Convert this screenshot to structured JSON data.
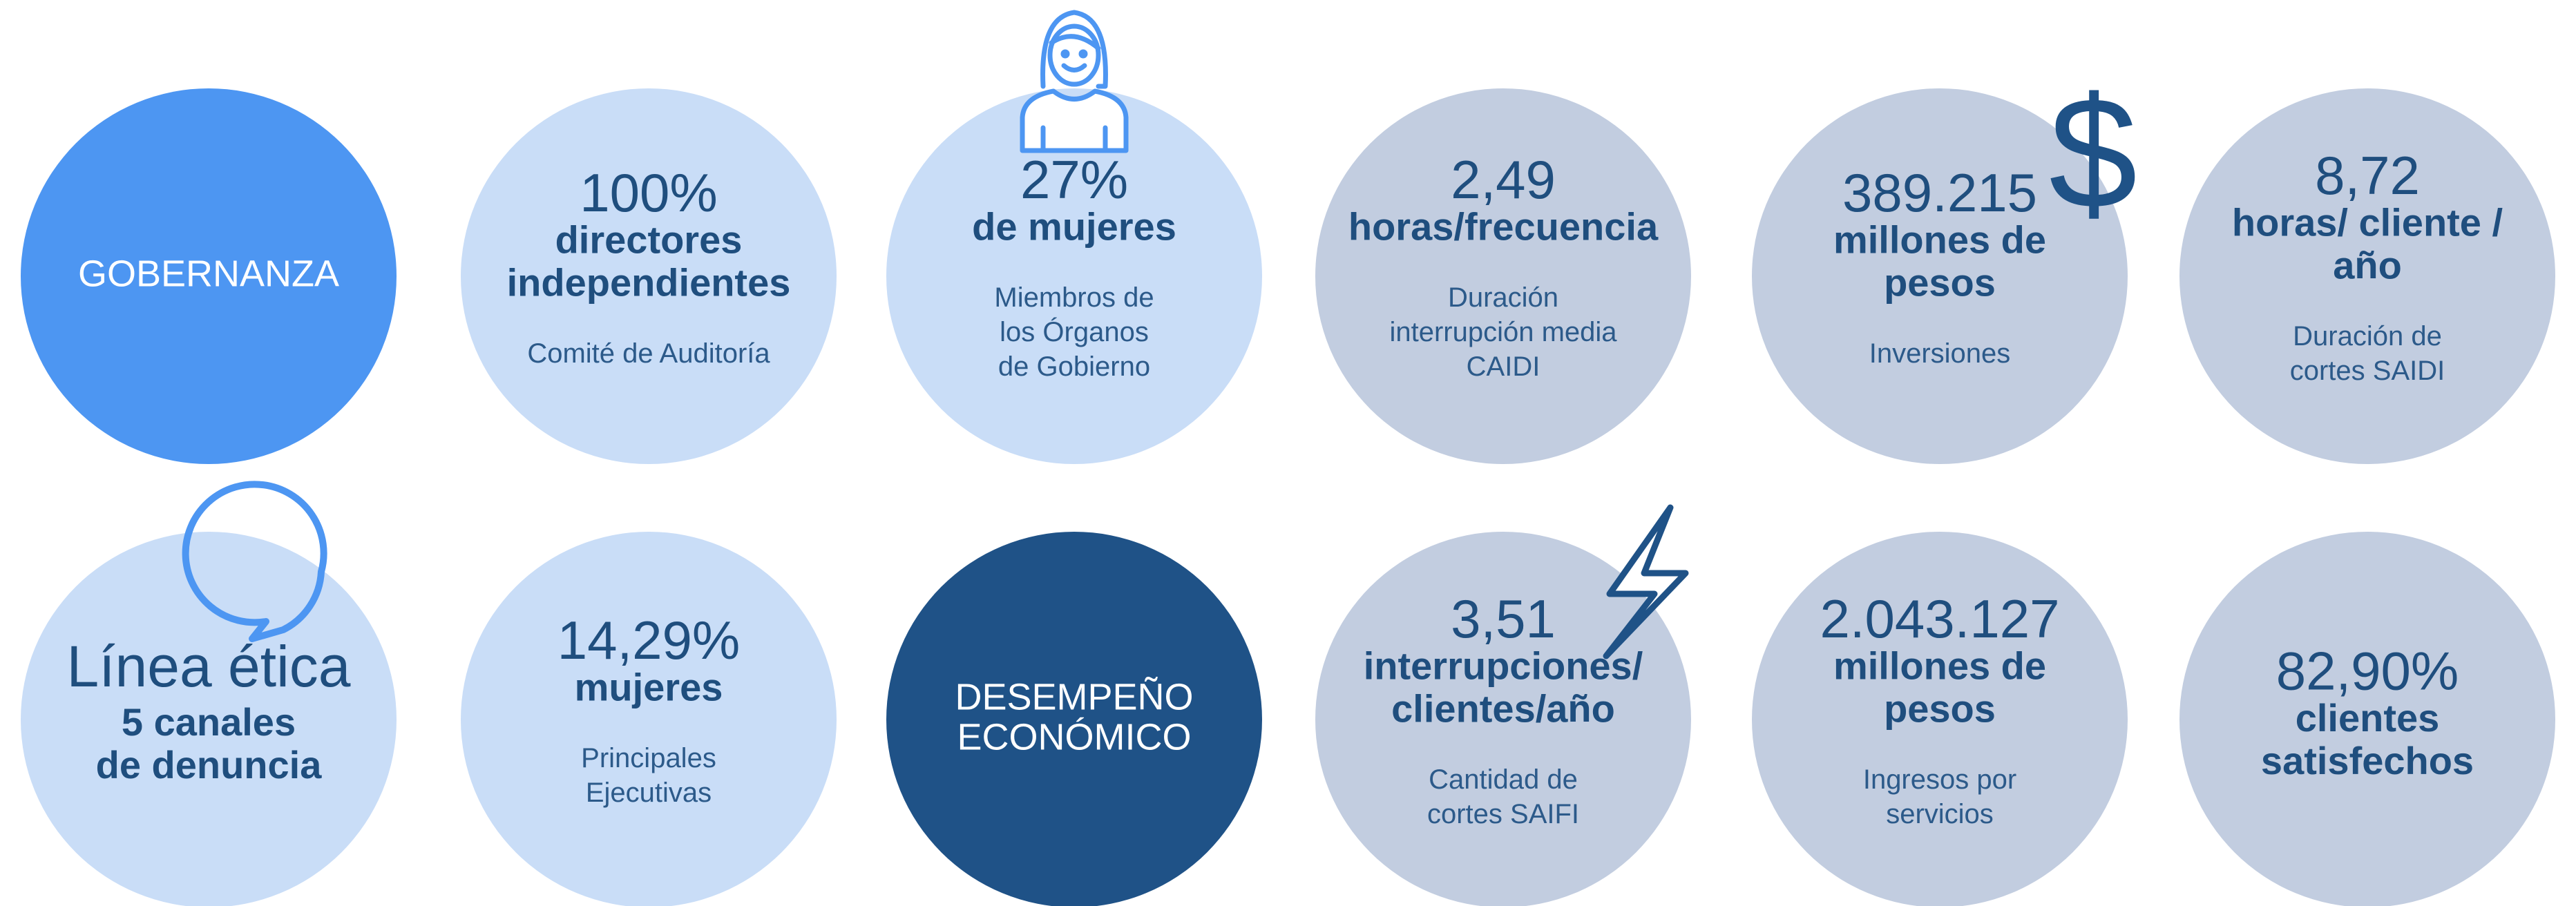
{
  "rows": [
    [
      {
        "fill": "#4d96f2",
        "title": [
          "GOBERNANZA"
        ]
      },
      {
        "fill": "#c9ddf7",
        "value": "100%",
        "lines": [
          "directores",
          "independientes"
        ],
        "note": [
          "Comité de Auditoría"
        ]
      },
      {
        "fill": "#c9ddf7",
        "value": "27%",
        "lines": [
          "de mujeres"
        ],
        "note": [
          "Miembros de",
          "los Órganos",
          "de Gobierno"
        ]
      },
      {
        "fill": "#c2cde0",
        "value": "2,49",
        "lines": [
          "horas/frecuencia"
        ],
        "note": [
          "Duración",
          "interrupción media",
          "CAIDI"
        ]
      },
      {
        "fill": "#c2cde0",
        "value": "389.215",
        "lines": [
          "millones de",
          "pesos"
        ],
        "note": [
          "Inversiones"
        ]
      },
      {
        "fill": "#c2cde0",
        "value": "8,72",
        "lines": [
          "horas/ cliente /",
          "año"
        ],
        "note": [
          "Duración de",
          "cortes SAIDI"
        ]
      }
    ],
    [
      {
        "fill": "#c9ddf7",
        "heading": "Línea ética",
        "lines": [
          "5 canales",
          "de denuncia"
        ]
      },
      {
        "fill": "#c9ddf7",
        "value": "14,29%",
        "lines": [
          "mujeres"
        ],
        "note": [
          "Principales",
          "Ejecutivas"
        ]
      },
      {
        "fill": "#1f5287",
        "title": [
          "DESEMPEÑO",
          "ECONÓMICO"
        ]
      },
      {
        "fill": "#c2cde0",
        "value": "3,51",
        "lines": [
          "interrupciones/",
          "clientes/año"
        ],
        "note": [
          "Cantidad de",
          "cortes SAIFI"
        ]
      },
      {
        "fill": "#c2cde0",
        "value": "2.043.127",
        "lines": [
          "millones de",
          "pesos"
        ],
        "note": [
          "Ingresos por",
          "servicios"
        ]
      },
      {
        "fill": "#c2cde0",
        "value": "82,90%",
        "lines": [
          "clientes",
          "satisfechos"
        ]
      }
    ]
  ]
}
